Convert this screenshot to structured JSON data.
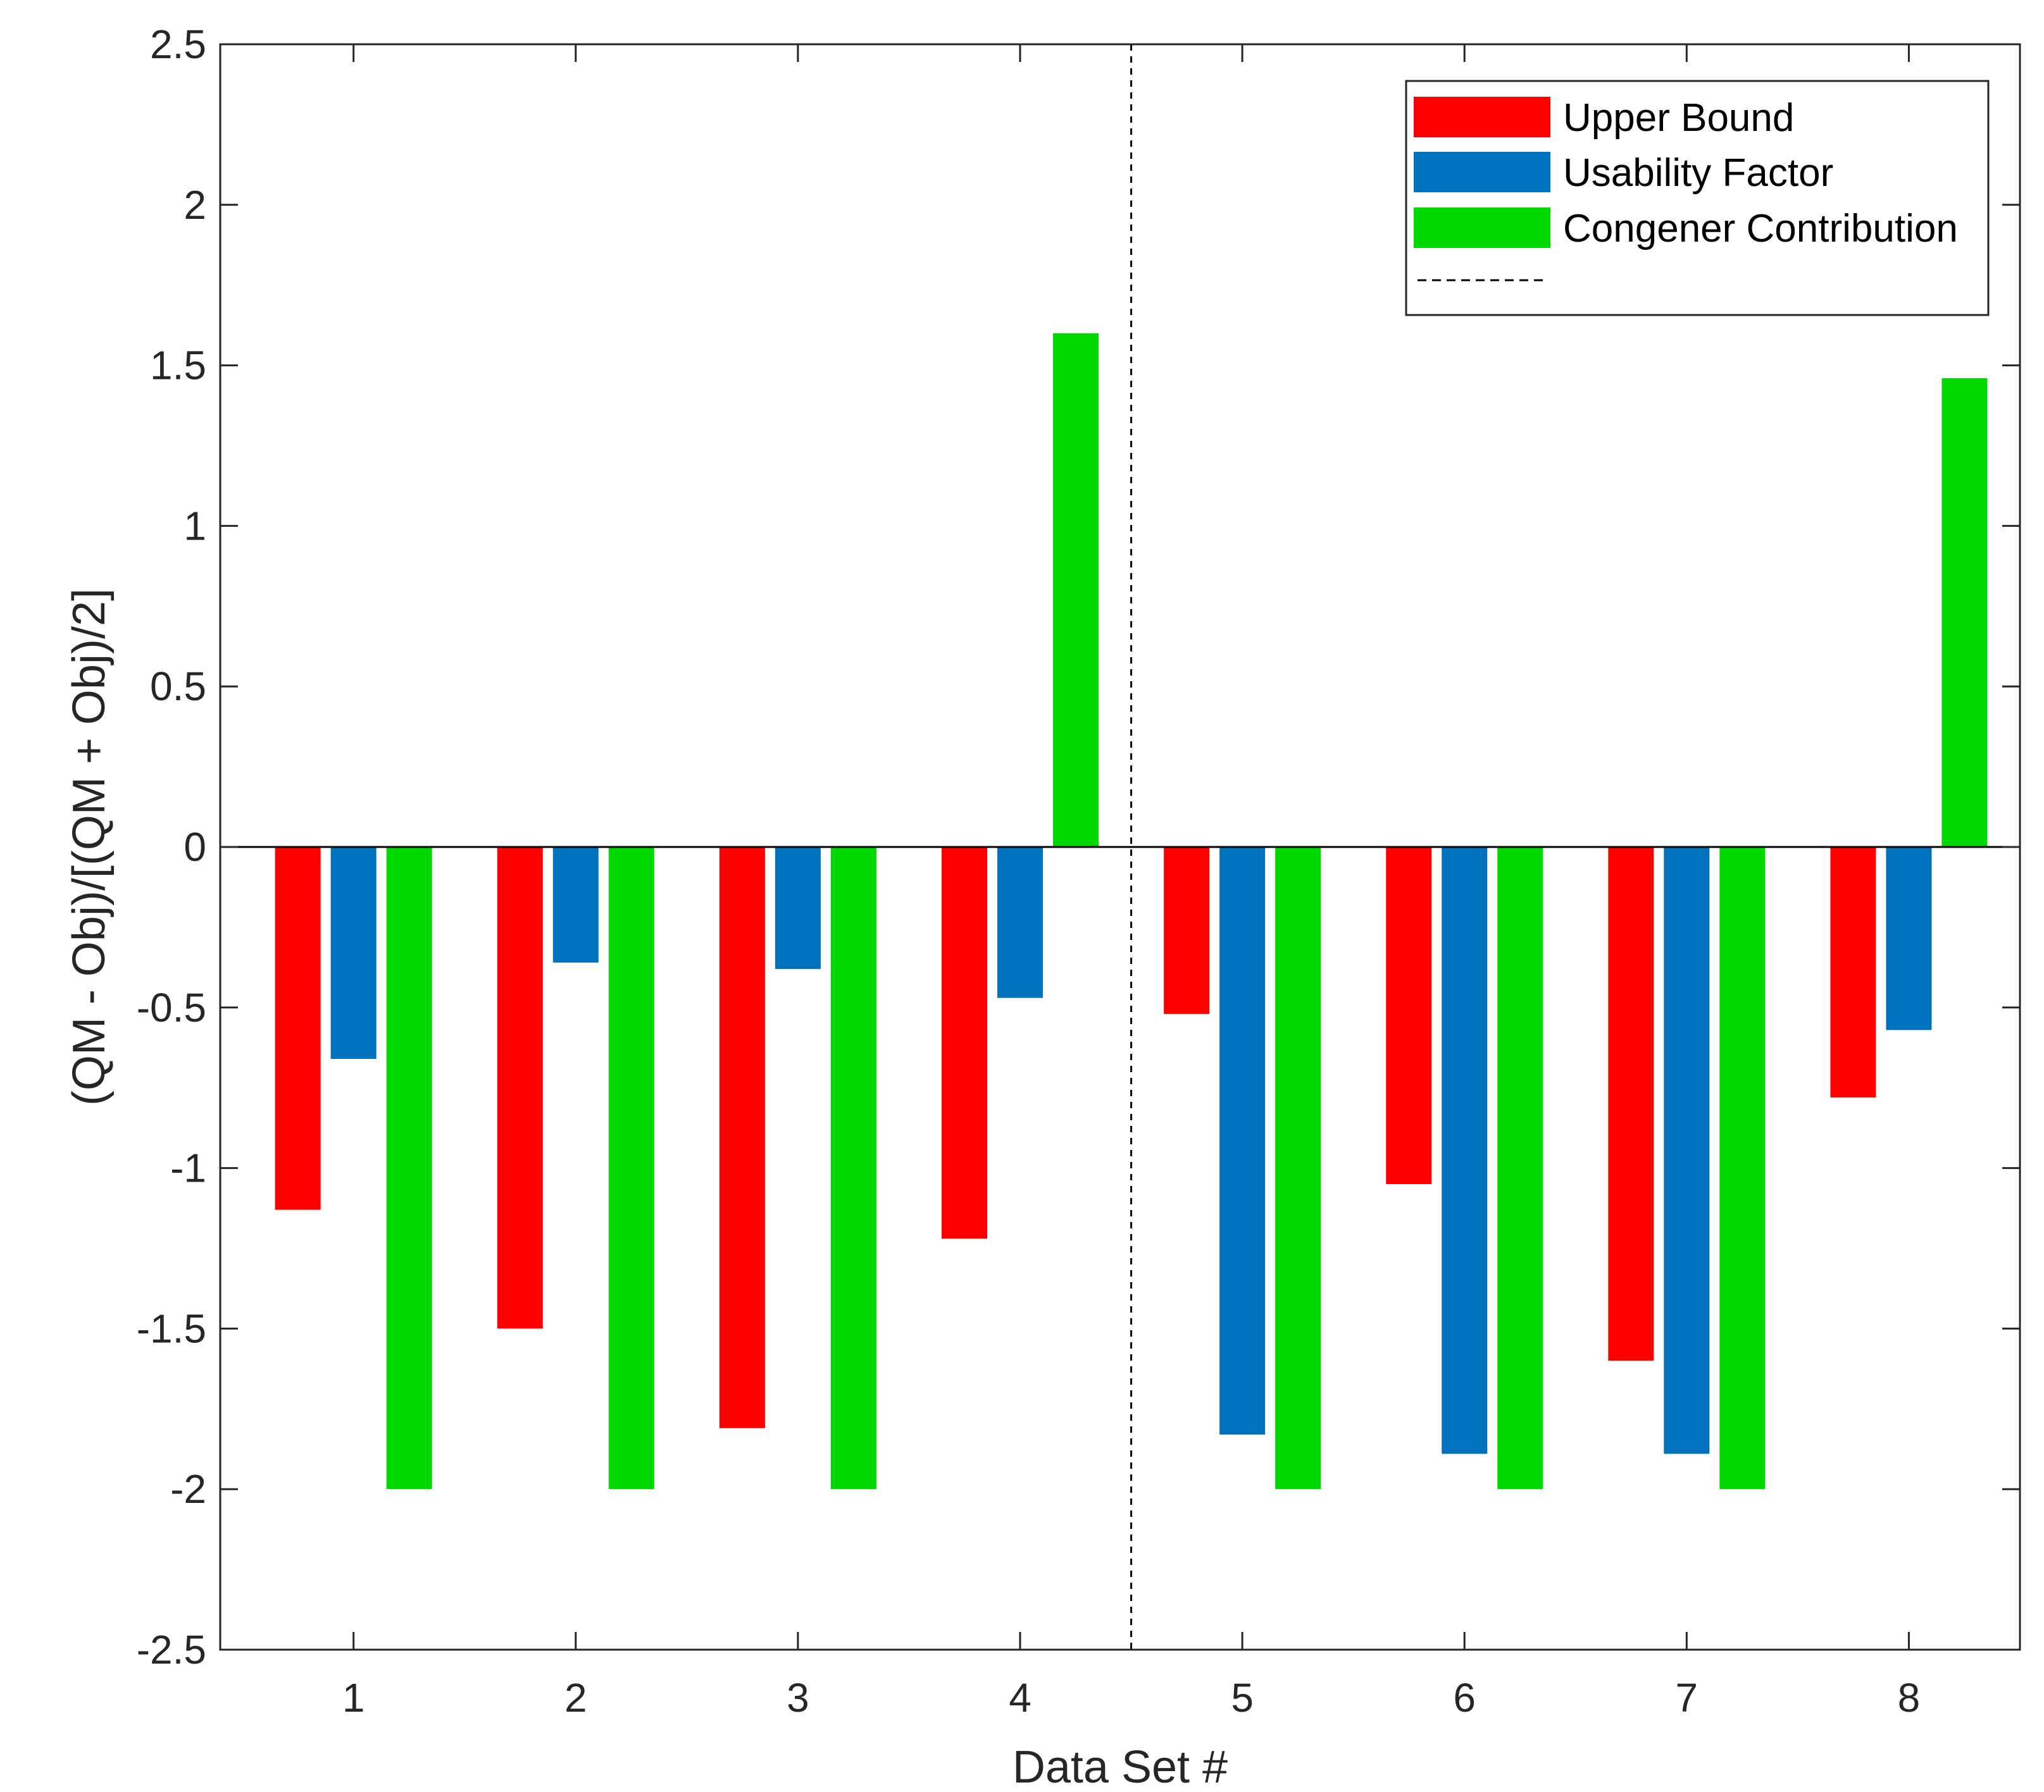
{
  "chart_data": {
    "type": "bar",
    "title": "",
    "xlabel": "Data Set #",
    "ylabel": "(QM - Obj)/[(QM + Obj)/2]",
    "ylim": [
      -2.5,
      2.5
    ],
    "yticks": [
      -2.5,
      -2,
      -1.5,
      -1,
      -0.5,
      0,
      0.5,
      1,
      1.5,
      2,
      2.5
    ],
    "ytick_labels": [
      "-2.5",
      "-2",
      "-1.5",
      "-1",
      "-0.5",
      "0",
      "0.5",
      "1",
      "1.5",
      "2",
      "2.5"
    ],
    "categories": [
      "1",
      "2",
      "3",
      "4",
      "5",
      "6",
      "7",
      "8"
    ],
    "xlim": [
      0.4,
      8.5
    ],
    "grid": false,
    "legend_position": "top-right",
    "series": [
      {
        "name": "Upper Bound",
        "color": "#ff0000",
        "values": [
          -1.13,
          -1.5,
          -1.81,
          -1.22,
          -0.52,
          -1.05,
          -1.6,
          -0.78
        ]
      },
      {
        "name": "Usability Factor",
        "color": "#0072bd",
        "values": [
          -0.66,
          -0.36,
          -0.38,
          -0.47,
          -1.83,
          -1.89,
          -1.89,
          -0.57
        ]
      },
      {
        "name": "Congener Contribution",
        "color": "#00d900",
        "values": [
          -2.0,
          -2.0,
          -2.0,
          1.6,
          -2.0,
          -2.0,
          -2.0,
          1.46
        ]
      }
    ],
    "reference_line": {
      "name": "",
      "style": "dashed",
      "orientation": "vertical",
      "x": 4.5
    }
  }
}
